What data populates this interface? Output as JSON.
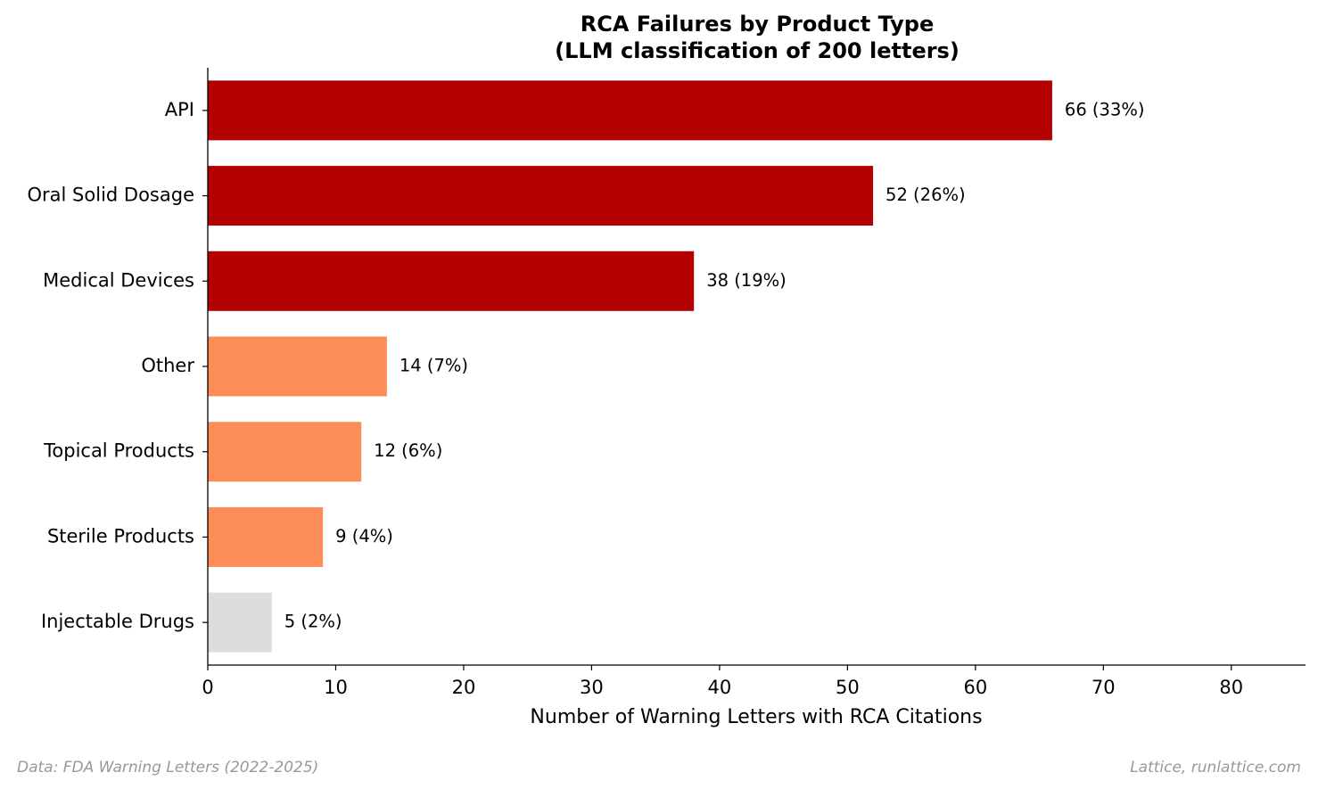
{
  "chart_data": {
    "type": "bar",
    "orientation": "horizontal",
    "title": "RCA Failures by Product Type",
    "subtitle": "(LLM classification of 200 letters)",
    "xlabel": "Number of Warning Letters with RCA Citations",
    "ylabel": "",
    "xlim": [
      0,
      85.8
    ],
    "xticks": [
      0,
      10,
      20,
      30,
      40,
      50,
      60,
      70,
      80
    ],
    "grid": false,
    "categories": [
      "API",
      "Oral Solid Dosage",
      "Medical Devices",
      "Other",
      "Topical Products",
      "Sterile Products",
      "Injectable Drugs"
    ],
    "values": [
      66,
      52,
      38,
      14,
      12,
      9,
      5
    ],
    "data_labels": [
      "66 (33%)",
      "52 (26%)",
      "38 (19%)",
      "14 (7%)",
      "12 (6%)",
      "9 (4%)",
      "5 (2%)"
    ],
    "bar_colors": [
      "#b30000",
      "#b30000",
      "#b30000",
      "#fc8d59",
      "#fc8d59",
      "#fc8d59",
      "#dddddd"
    ]
  },
  "footer": {
    "source": "Data: FDA Warning Letters (2022-2025)",
    "credit": "Lattice, runlattice.com"
  }
}
